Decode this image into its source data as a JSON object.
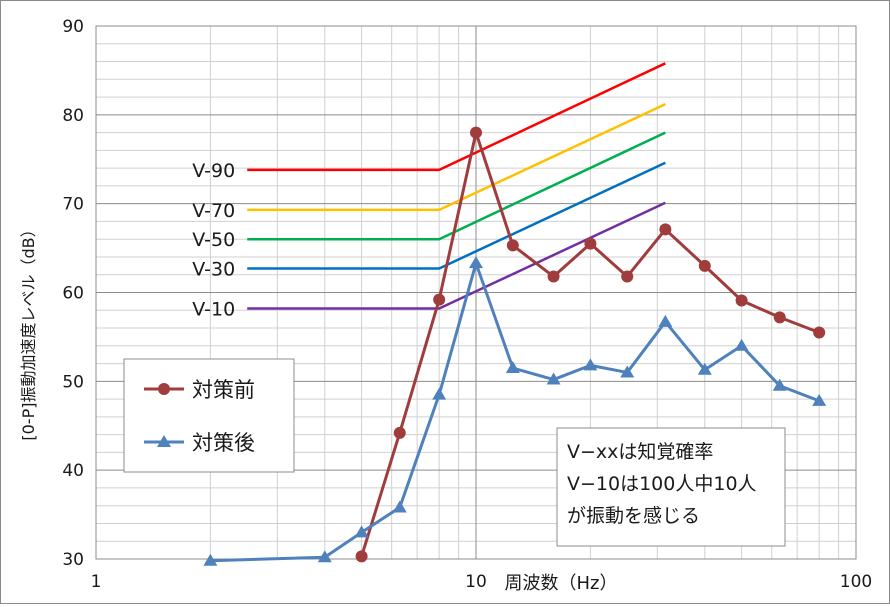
{
  "chart_data": {
    "type": "line",
    "xscale": "log",
    "xlim": [
      1,
      100
    ],
    "ylim": [
      30,
      90
    ],
    "grid": true,
    "xlabel": "周波数（Hz）",
    "ylabel": "[0-P]振動加速度レベル（dB）",
    "x_ticks": [
      "1",
      "10",
      "100"
    ],
    "y_ticks": [
      "30",
      "40",
      "50",
      "60",
      "70",
      "80",
      "90"
    ],
    "legend_position": "bottom-left",
    "series": [
      {
        "name": "対策前",
        "color": "#a03c3c",
        "marker": "circle",
        "x": [
          5,
          6.3,
          8,
          10,
          12.5,
          16,
          20,
          25,
          31.5,
          40,
          50,
          63,
          80
        ],
        "y": [
          30.3,
          44.2,
          59.2,
          78.0,
          65.3,
          61.8,
          65.5,
          61.8,
          67.1,
          63.0,
          59.1,
          57.2,
          55.5
        ]
      },
      {
        "name": "対策後",
        "color": "#4f81bd",
        "marker": "triangle",
        "x": [
          2,
          4,
          5,
          6.3,
          8,
          10,
          12.5,
          16,
          20,
          25,
          31.5,
          40,
          50,
          63,
          80
        ],
        "y": [
          29.8,
          30.2,
          33.0,
          35.8,
          48.5,
          63.3,
          51.5,
          50.2,
          51.8,
          51.0,
          56.7,
          51.3,
          54.0,
          49.5,
          47.8
        ]
      }
    ],
    "reference_curves": [
      {
        "label": "V-90",
        "color": "#ff0000",
        "flat_level": 73.8,
        "x_start": 2.5,
        "x_break": 8,
        "x_end": 31.5,
        "end_level": 85.8
      },
      {
        "label": "V-70",
        "color": "#ffc000",
        "flat_level": 69.3,
        "x_start": 2.5,
        "x_break": 8,
        "x_end": 31.5,
        "end_level": 81.2
      },
      {
        "label": "V-50",
        "color": "#00b050",
        "flat_level": 66.0,
        "x_start": 2.5,
        "x_break": 8,
        "x_end": 31.5,
        "end_level": 78.0
      },
      {
        "label": "V-30",
        "color": "#0070c0",
        "flat_level": 62.7,
        "x_start": 2.5,
        "x_break": 8,
        "x_end": 31.5,
        "end_level": 74.6
      },
      {
        "label": "V-10",
        "color": "#7030a0",
        "flat_level": 58.2,
        "x_start": 2.5,
        "x_break": 8,
        "x_end": 31.5,
        "end_level": 70.1
      }
    ],
    "annotation": [
      "V−xxは知覚確率",
      "V−10は100人中10人",
      "が振動を感じる"
    ]
  }
}
